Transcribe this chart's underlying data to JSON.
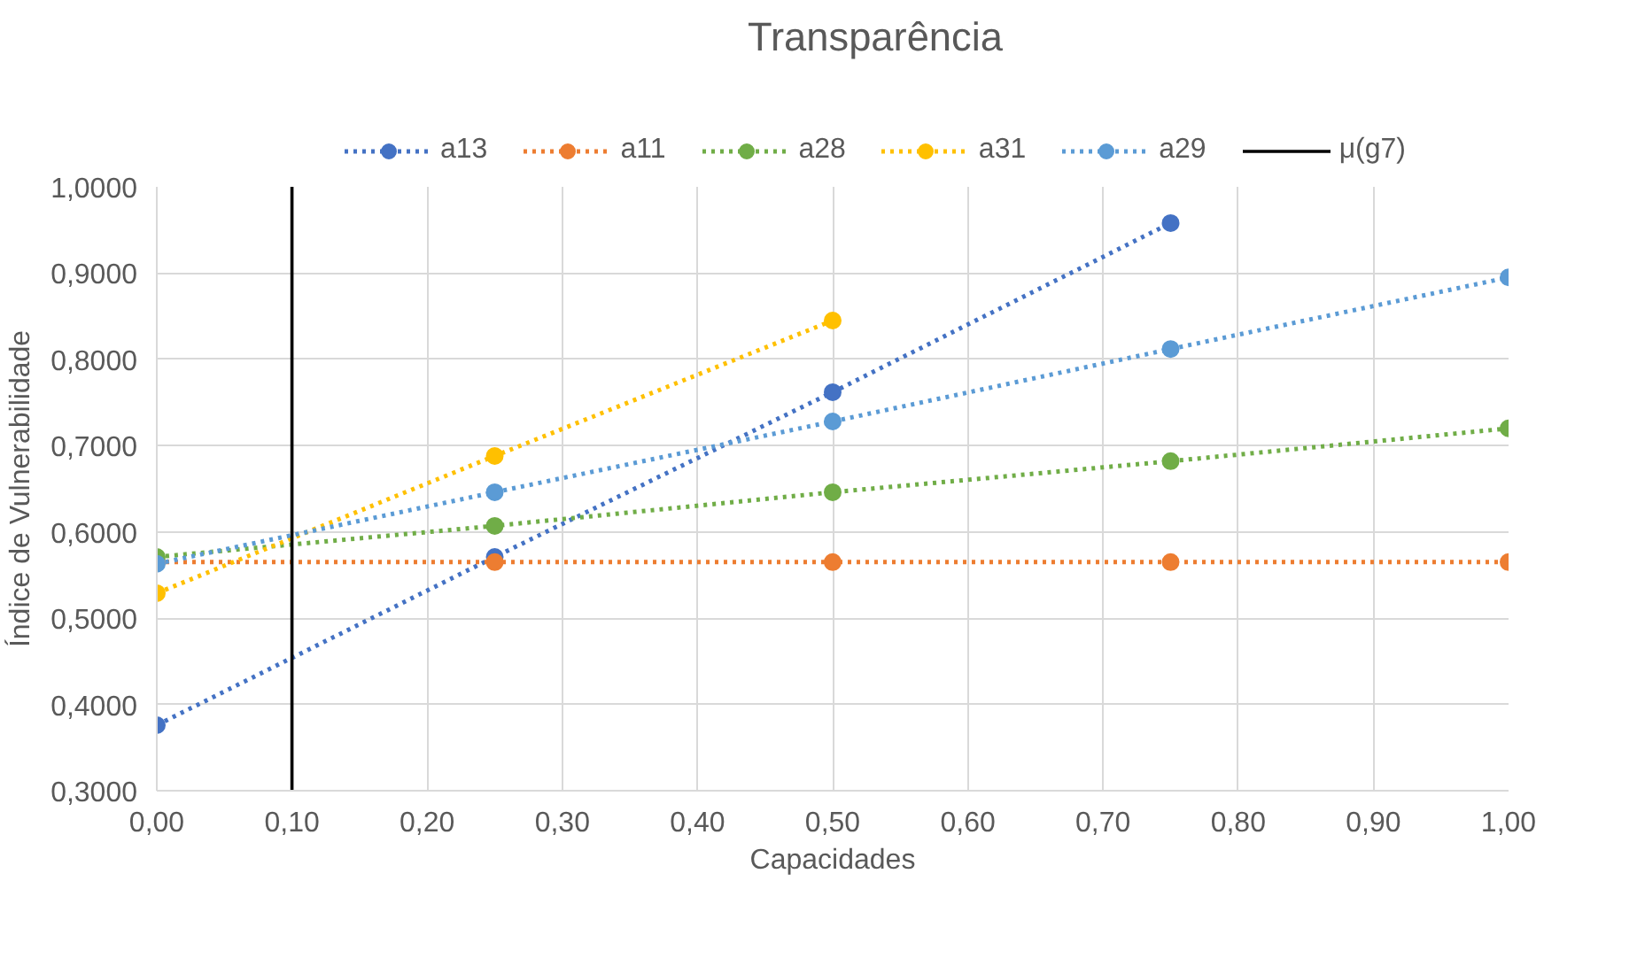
{
  "chart_data": {
    "type": "line",
    "title": "Transparência",
    "xlabel": "Capacidades",
    "ylabel": "Índice de Vulnerabilidade",
    "x": [
      0,
      0.25,
      0.5,
      0.75,
      1.0
    ],
    "series": [
      {
        "name": "a13",
        "color": "#4472c4",
        "values": [
          0.376,
          0.571,
          0.762,
          0.958,
          null
        ],
        "marker": "circle",
        "line_style": "dotted"
      },
      {
        "name": "a11",
        "color": "#ed7d31",
        "values": [
          0.565,
          0.565,
          0.565,
          0.565,
          0.565
        ],
        "marker": "circle",
        "line_style": "dotted"
      },
      {
        "name": "a28",
        "color": "#70ad47",
        "values": [
          0.571,
          0.607,
          0.646,
          0.682,
          0.72
        ],
        "marker": "circle",
        "line_style": "dotted"
      },
      {
        "name": "a31",
        "color": "#ffc000",
        "values": [
          0.529,
          0.688,
          0.845,
          null,
          null
        ],
        "marker": "circle",
        "line_style": "dotted"
      },
      {
        "name": "a29",
        "color": "#5b9bd5",
        "values": [
          0.563,
          0.646,
          0.728,
          0.812,
          0.895
        ],
        "marker": "circle",
        "line_style": "dotted"
      },
      {
        "name": "μ(g7)",
        "color": "#000000",
        "x": [
          0.1,
          0.1
        ],
        "values": [
          0.3,
          1.0
        ],
        "marker": "none",
        "line_style": "solid"
      }
    ],
    "xlim": [
      0,
      1
    ],
    "ylim": [
      0.3,
      1.0
    ],
    "xticks": [
      {
        "value": 0,
        "label": "0,00"
      },
      {
        "value": 0.1,
        "label": "0,10"
      },
      {
        "value": 0.2,
        "label": "0,20"
      },
      {
        "value": 0.3,
        "label": "0,30"
      },
      {
        "value": 0.4,
        "label": "0,40"
      },
      {
        "value": 0.5,
        "label": "0,50"
      },
      {
        "value": 0.6,
        "label": "0,60"
      },
      {
        "value": 0.7,
        "label": "0,70"
      },
      {
        "value": 0.8,
        "label": "0,80"
      },
      {
        "value": 0.9,
        "label": "0,90"
      },
      {
        "value": 1.0,
        "label": "1,00"
      }
    ],
    "yticks": [
      {
        "value": 0.3,
        "label": "0,3000"
      },
      {
        "value": 0.4,
        "label": "0,4000"
      },
      {
        "value": 0.5,
        "label": "0,5000"
      },
      {
        "value": 0.6,
        "label": "0,6000"
      },
      {
        "value": 0.7,
        "label": "0,7000"
      },
      {
        "value": 0.8,
        "label": "0,8000"
      },
      {
        "value": 0.9,
        "label": "0,9000"
      },
      {
        "value": 1.0,
        "label": "1,0000"
      }
    ],
    "grid": true,
    "legend": "top"
  }
}
